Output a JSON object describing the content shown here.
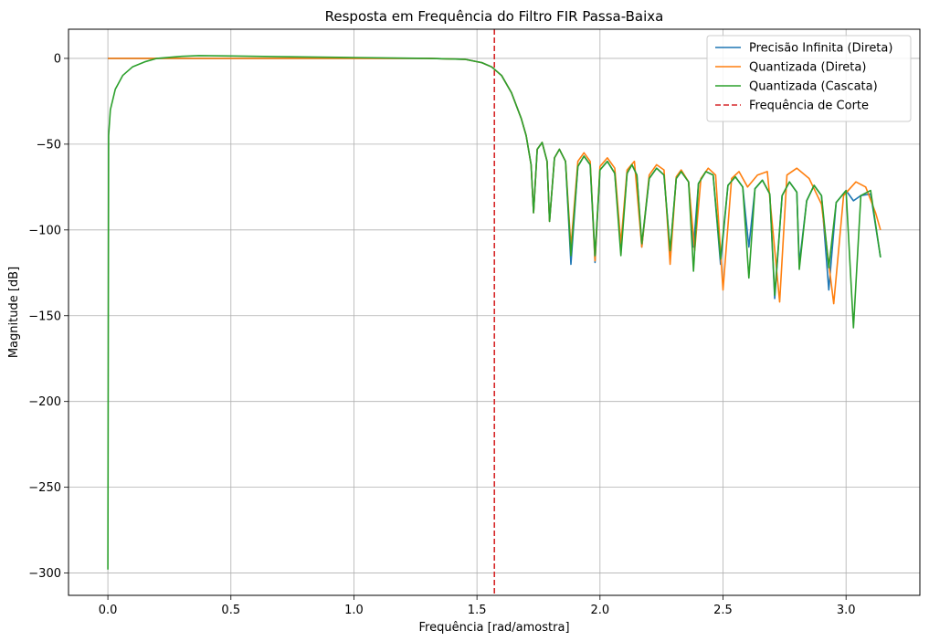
{
  "chart_data": {
    "type": "line",
    "title": "Resposta em Frequência do Filtro FIR Passa-Baixa",
    "xlabel": "Frequência [rad/amostra]",
    "ylabel": "Magnitude [dB]",
    "xlim": [
      -0.16,
      3.3
    ],
    "ylim": [
      -313,
      17
    ],
    "xticks": [
      0.0,
      0.5,
      1.0,
      1.5,
      2.0,
      2.5,
      3.0
    ],
    "xtick_labels": [
      "0.0",
      "0.5",
      "1.0",
      "1.5",
      "2.0",
      "2.5",
      "3.0"
    ],
    "yticks": [
      0,
      -50,
      -100,
      -150,
      -200,
      -250,
      -300
    ],
    "ytick_labels": [
      "0",
      "−50",
      "−100",
      "−150",
      "−200",
      "−250",
      "−300"
    ],
    "grid": true,
    "legend_position": "top-right",
    "cutoff": {
      "name": "Frequência de Corte",
      "x": 1.5708,
      "color": "#d62728",
      "style": "dashed"
    },
    "series": [
      {
        "name": "Precisão Infinita (Direta)",
        "color": "#1f77b4",
        "x": [
          0.0,
          0.1,
          0.3,
          0.6,
          1.0,
          1.3,
          1.45,
          1.52,
          1.56,
          1.6,
          1.64,
          1.68,
          1.7,
          1.72,
          1.73,
          1.745,
          1.765,
          1.785,
          1.795,
          1.815,
          1.835,
          1.86,
          1.882,
          1.91,
          1.935,
          1.96,
          1.98,
          2.0,
          2.03,
          2.06,
          2.085,
          2.11,
          2.13,
          2.15,
          2.17,
          2.2,
          2.23,
          2.26,
          2.285,
          2.31,
          2.33,
          2.36,
          2.38,
          2.4,
          2.43,
          2.46,
          2.49,
          2.52,
          2.55,
          2.58,
          2.605,
          2.63,
          2.66,
          2.69,
          2.71,
          2.74,
          2.77,
          2.8,
          2.81,
          2.84,
          2.87,
          2.9,
          2.93,
          2.96,
          3.0,
          3.03,
          3.06,
          3.1,
          3.14
        ],
        "values": [
          0.0,
          0.0,
          0.0,
          0.0,
          0.0,
          0.0,
          -0.5,
          -2.5,
          -5.0,
          -10.0,
          -20.0,
          -35.0,
          -45.0,
          -62.0,
          -90.0,
          -53.0,
          -49.0,
          -60.0,
          -95.0,
          -58.0,
          -53.0,
          -60.0,
          -120.0,
          -63.0,
          -57.0,
          -62.0,
          -119.0,
          -65.0,
          -60.0,
          -67.0,
          -110.0,
          -67.0,
          -62.0,
          -68.0,
          -110.0,
          -70.0,
          -64.0,
          -68.0,
          -113.0,
          -70.0,
          -66.0,
          -72.0,
          -110.0,
          -73.0,
          -66.0,
          -68.0,
          -120.0,
          -74.0,
          -69.0,
          -75.0,
          -110.0,
          -76.0,
          -71.0,
          -79.0,
          -140.0,
          -80.0,
          -72.0,
          -78.0,
          -120.0,
          -83.0,
          -74.0,
          -80.0,
          -135.0,
          -84.0,
          -77.0,
          -83.0,
          -80.0,
          -79.0,
          -116.0
        ]
      },
      {
        "name": "Quantizada (Direta)",
        "color": "#ff7f0e",
        "x": [
          0.0,
          0.1,
          0.3,
          0.6,
          1.0,
          1.3,
          1.45,
          1.52,
          1.56,
          1.6,
          1.64,
          1.68,
          1.7,
          1.72,
          1.73,
          1.745,
          1.765,
          1.785,
          1.795,
          1.815,
          1.835,
          1.86,
          1.882,
          1.91,
          1.935,
          1.96,
          1.98,
          2.0,
          2.03,
          2.06,
          2.085,
          2.11,
          2.14,
          2.17,
          2.2,
          2.23,
          2.26,
          2.285,
          2.31,
          2.33,
          2.36,
          2.385,
          2.41,
          2.44,
          2.47,
          2.5,
          2.535,
          2.565,
          2.6,
          2.64,
          2.68,
          2.73,
          2.76,
          2.8,
          2.85,
          2.9,
          2.95,
          2.99,
          3.04,
          3.08,
          3.12,
          3.14
        ],
        "values": [
          0.0,
          0.0,
          0.0,
          0.0,
          0.0,
          0.0,
          -0.5,
          -2.5,
          -5.0,
          -10.0,
          -20.0,
          -35.0,
          -45.0,
          -62.0,
          -90.0,
          -53.0,
          -49.0,
          -60.0,
          -95.0,
          -58.0,
          -53.0,
          -60.0,
          -110.0,
          -60.0,
          -55.0,
          -60.0,
          -118.0,
          -63.0,
          -58.0,
          -64.0,
          -108.0,
          -65.0,
          -60.0,
          -110.0,
          -68.0,
          -62.0,
          -65.0,
          -120.0,
          -69.0,
          -65.0,
          -72.0,
          -112.0,
          -70.0,
          -64.0,
          -68.0,
          -135.0,
          -70.0,
          -66.0,
          -75.0,
          -68.0,
          -66.0,
          -142.0,
          -68.0,
          -64.0,
          -70.0,
          -85.0,
          -143.0,
          -80.0,
          -72.0,
          -75.0,
          -90.0,
          -100.0
        ]
      },
      {
        "name": "Quantizada (Cascata)",
        "color": "#2ca02c",
        "x": [
          0.0,
          0.003,
          0.01,
          0.03,
          0.06,
          0.1,
          0.15,
          0.2,
          0.3,
          0.37,
          0.5,
          0.7,
          1.0,
          1.3,
          1.45,
          1.52,
          1.56,
          1.6,
          1.64,
          1.68,
          1.7,
          1.72,
          1.73,
          1.745,
          1.765,
          1.785,
          1.795,
          1.815,
          1.835,
          1.86,
          1.882,
          1.91,
          1.935,
          1.96,
          1.98,
          2.0,
          2.03,
          2.06,
          2.085,
          2.11,
          2.13,
          2.15,
          2.17,
          2.2,
          2.23,
          2.26,
          2.285,
          2.31,
          2.33,
          2.36,
          2.38,
          2.4,
          2.43,
          2.46,
          2.49,
          2.52,
          2.55,
          2.58,
          2.605,
          2.63,
          2.66,
          2.69,
          2.71,
          2.74,
          2.77,
          2.8,
          2.81,
          2.84,
          2.87,
          2.9,
          2.93,
          2.96,
          3.0,
          3.03,
          3.06,
          3.1,
          3.14
        ],
        "values": [
          -298.0,
          -45.0,
          -30.0,
          -18.0,
          -10.0,
          -5.0,
          -2.0,
          0.0,
          1.2,
          1.6,
          1.4,
          1.0,
          0.5,
          0.0,
          -0.5,
          -2.5,
          -5.0,
          -10.0,
          -20.0,
          -35.0,
          -45.0,
          -62.0,
          -90.0,
          -53.0,
          -49.0,
          -60.0,
          -95.0,
          -58.0,
          -53.0,
          -60.0,
          -115.0,
          -63.0,
          -57.0,
          -62.0,
          -115.0,
          -65.0,
          -60.0,
          -67.0,
          -115.0,
          -67.0,
          -62.0,
          -68.0,
          -108.0,
          -70.0,
          -64.0,
          -68.0,
          -112.0,
          -70.0,
          -66.0,
          -72.0,
          -124.0,
          -73.0,
          -66.0,
          -68.0,
          -117.0,
          -74.0,
          -69.0,
          -75.0,
          -128.0,
          -76.0,
          -71.0,
          -79.0,
          -138.0,
          -80.0,
          -72.0,
          -78.0,
          -123.0,
          -83.0,
          -74.0,
          -80.0,
          -122.0,
          -84.0,
          -77.0,
          -157.0,
          -80.0,
          -77.0,
          -116.0
        ]
      }
    ]
  }
}
